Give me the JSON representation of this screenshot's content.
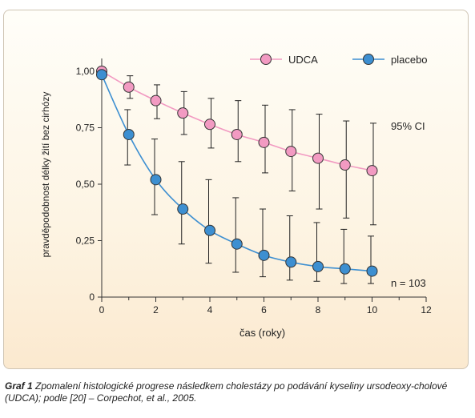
{
  "chart_data": {
    "type": "line",
    "ylabel": "pravděpodobnost délky žití bez cirhózy",
    "xlabel": "čas (roky)",
    "xlim": [
      0,
      12
    ],
    "ylim": [
      0,
      1
    ],
    "x_ticks": [
      "0",
      "2",
      "4",
      "6",
      "8",
      "10",
      "12"
    ],
    "y_ticks": [
      "0",
      "0,25",
      "0,50",
      "0,75",
      "1,00"
    ],
    "x": [
      0,
      1,
      2,
      3,
      4,
      5,
      6,
      7,
      8,
      9,
      10
    ],
    "series": [
      {
        "name": "UDCA",
        "color": "#f29ac2",
        "values": [
          1.0,
          0.93,
          0.87,
          0.815,
          0.765,
          0.72,
          0.685,
          0.645,
          0.615,
          0.585,
          0.56
        ],
        "ci_low": [
          1.0,
          0.88,
          0.79,
          0.72,
          0.66,
          0.6,
          0.55,
          0.47,
          0.39,
          0.35,
          0.32
        ],
        "ci_high": [
          1.0,
          0.98,
          0.94,
          0.91,
          0.88,
          0.87,
          0.85,
          0.83,
          0.81,
          0.78,
          0.77
        ]
      },
      {
        "name": "placebo",
        "color": "#3d8fd1",
        "values": [
          0.985,
          0.72,
          0.52,
          0.39,
          0.295,
          0.235,
          0.185,
          0.155,
          0.135,
          0.125,
          0.115
        ],
        "ci_low": [
          0.985,
          0.585,
          0.365,
          0.235,
          0.15,
          0.11,
          0.09,
          0.075,
          0.07,
          0.06,
          0.06
        ],
        "ci_high": [
          0.985,
          0.83,
          0.7,
          0.6,
          0.52,
          0.44,
          0.39,
          0.36,
          0.33,
          0.3,
          0.27
        ]
      }
    ],
    "annotations": [
      "95% CI",
      "n = 103"
    ],
    "legend_position": "top-right",
    "grid": false
  },
  "caption": {
    "label": "Graf 1",
    "text": "Zpomalení histologické progrese následkem cholestázy po podávání kyseliny ursodeoxy-cholové (UDCA); podle [20] –  Corpechot, et al., 2005."
  }
}
